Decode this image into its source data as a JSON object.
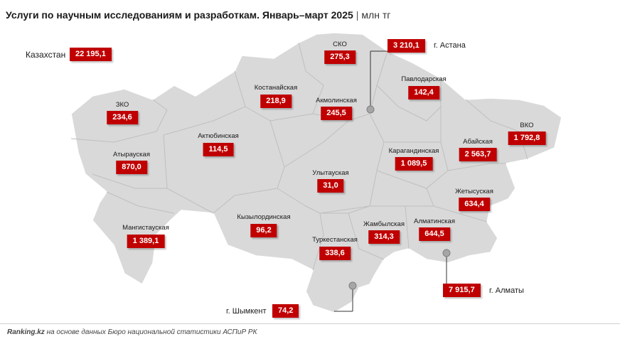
{
  "title": "Услуги по научным исследованиям и разработкам. Январь–март 2025",
  "unit": "млн тг",
  "kazakhstan": {
    "label": "Казахстан",
    "value": "22 195,1"
  },
  "regions": [
    {
      "name": "ЗКО",
      "value": "234,6"
    },
    {
      "name": "Атырауская",
      "value": "870,0"
    },
    {
      "name": "Мангистауская",
      "value": "1 389,1"
    },
    {
      "name": "Актюбинская",
      "value": "114,5"
    },
    {
      "name": "Костанайская",
      "value": "218,9"
    },
    {
      "name": "СКО",
      "value": "275,3"
    },
    {
      "name": "Акмолинская",
      "value": "245,5"
    },
    {
      "name": "Павлодарская",
      "value": "142,4"
    },
    {
      "name": "ВКО",
      "value": "1 792,8"
    },
    {
      "name": "Абайская",
      "value": "2 563,7"
    },
    {
      "name": "Карагандинская",
      "value": "1 089,5"
    },
    {
      "name": "Улытауская",
      "value": "31,0"
    },
    {
      "name": "Кызылординская",
      "value": "96,2"
    },
    {
      "name": "Туркестанская",
      "value": "338,6"
    },
    {
      "name": "Жамбылская",
      "value": "314,3"
    },
    {
      "name": "Алматинская",
      "value": "644,5"
    },
    {
      "name": "Жетысуская",
      "value": "634,4"
    }
  ],
  "cities": [
    {
      "name": "г. Астана",
      "value": "3 210,1"
    },
    {
      "name": "г. Алматы",
      "value": "7 915,7"
    },
    {
      "name": "г. Шымкент",
      "value": "74,2"
    }
  ],
  "footer": {
    "source": "Ranking.kz",
    "text": " на основе данных Бюро национальной статистики АСПиР РК"
  }
}
